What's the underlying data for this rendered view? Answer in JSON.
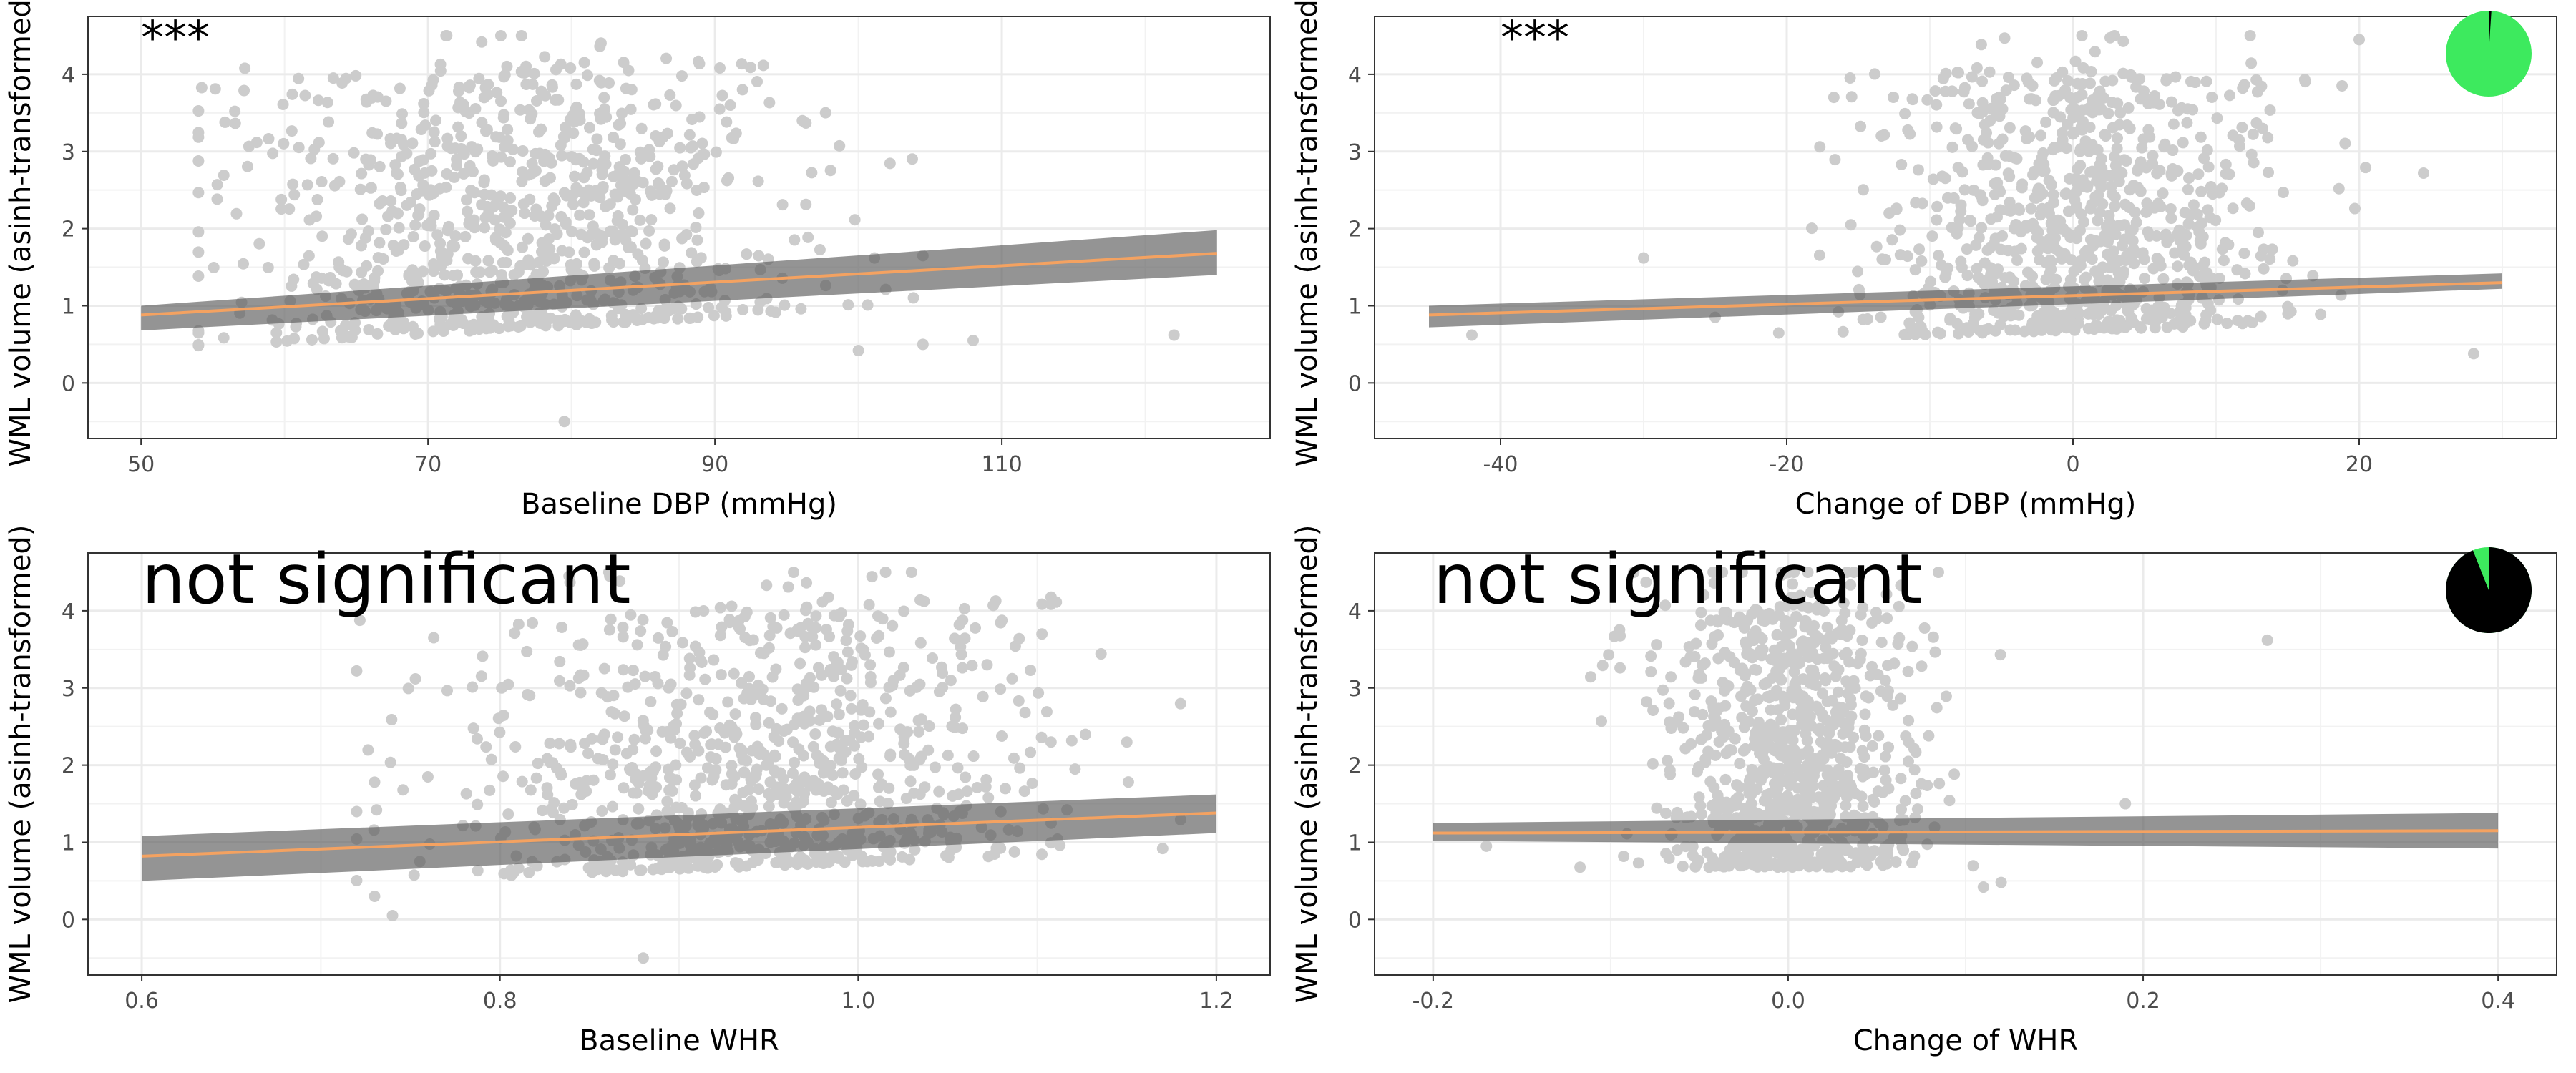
{
  "figure": {
    "ylabel": "WML volume (asinh-transformed)"
  },
  "chart_data": [
    {
      "type": "scatter",
      "xlabel": "Baseline DBP (mmHg)",
      "ylabel": "WML volume (asinh-transformed)",
      "annotation": "***",
      "xlim": [
        46.3,
        128.7
      ],
      "ylim": [
        -0.72,
        4.75
      ],
      "xticks": [
        50,
        70,
        90,
        110
      ],
      "xtick_labels": [
        "50",
        "70",
        "90",
        "110"
      ],
      "yticks": [
        0,
        1,
        2,
        3,
        4
      ],
      "ytick_labels": [
        "0",
        "1",
        "2",
        "3",
        "4"
      ],
      "fit": {
        "x": [
          50,
          125
        ],
        "y": [
          0.88,
          1.68
        ],
        "ci_low": [
          0.68,
          1.4
        ],
        "ci_high": [
          1.0,
          1.98
        ]
      },
      "scatter": {
        "x_mean": 76,
        "x_sd": 9.5,
        "x_min": 54,
        "x_max": 122,
        "extras": [
          [
            122,
            0.62
          ],
          [
            108,
            0.55
          ],
          [
            104.5,
            0.5
          ],
          [
            104.5,
            1.65
          ],
          [
            100,
            0.42
          ],
          [
            79.5,
            -0.5
          ]
        ]
      },
      "pie": null,
      "grid": true
    },
    {
      "type": "scatter",
      "xlabel": "Change of DBP (mmHg)",
      "ylabel": "WML volume (asinh-transformed)",
      "annotation": "***",
      "xlim": [
        -48.8,
        33.8
      ],
      "ylim": [
        -0.72,
        4.75
      ],
      "xticks": [
        -40,
        -20,
        0,
        20
      ],
      "xtick_labels": [
        "-40",
        "-20",
        "0",
        "20"
      ],
      "yticks": [
        0,
        1,
        2,
        3,
        4
      ],
      "ytick_labels": [
        "0",
        "1",
        "2",
        "3",
        "4"
      ],
      "fit": {
        "x": [
          -45,
          30
        ],
        "y": [
          0.88,
          1.3
        ],
        "ci_low": [
          0.72,
          1.22
        ],
        "ci_high": [
          1.0,
          1.42
        ]
      },
      "scatter": {
        "x_mean": 0,
        "x_sd": 7,
        "x_min": -22,
        "x_max": 28,
        "extras": [
          [
            -42,
            0.62
          ],
          [
            -30,
            1.62
          ],
          [
            -25,
            0.85
          ],
          [
            28,
            0.38
          ],
          [
            24.5,
            2.72
          ],
          [
            20,
            4.45
          ]
        ]
      },
      "pie": {
        "fraction_black": 0.01,
        "colors": [
          "#000000",
          "#3dea5e"
        ]
      },
      "grid": true
    },
    {
      "type": "scatter",
      "xlabel": "Baseline WHR",
      "ylabel": "WML volume (asinh-transformed)",
      "annotation": "not significant",
      "xlim": [
        0.57,
        1.23
      ],
      "ylim": [
        -0.72,
        4.75
      ],
      "xticks": [
        0.6,
        0.8,
        1.0,
        1.2
      ],
      "xtick_labels": [
        "0.6",
        "0.8",
        "1.0",
        "1.2"
      ],
      "yticks": [
        0,
        1,
        2,
        3,
        4
      ],
      "ytick_labels": [
        "0",
        "1",
        "2",
        "3",
        "4"
      ],
      "fit": {
        "x": [
          0.6,
          1.2
        ],
        "y": [
          0.82,
          1.38
        ],
        "ci_low": [
          0.5,
          1.12
        ],
        "ci_high": [
          1.08,
          1.62
        ]
      },
      "scatter": {
        "x_mean": 0.95,
        "x_sd": 0.08,
        "x_min": 0.72,
        "x_max": 1.18,
        "extras": [
          [
            0.73,
            1.78
          ],
          [
            0.73,
            0.3
          ],
          [
            0.74,
            0.05
          ],
          [
            1.17,
            0.92
          ],
          [
            0.88,
            -0.5
          ],
          [
            1.15,
            2.3
          ]
        ]
      },
      "pie": null,
      "grid": true
    },
    {
      "type": "scatter",
      "xlabel": "Change of WHR",
      "ylabel": "WML volume (asinh-transformed)",
      "annotation": "not significant",
      "xlim": [
        -0.233,
        0.433
      ],
      "ylim": [
        -0.72,
        4.75
      ],
      "xticks": [
        -0.2,
        0.0,
        0.2,
        0.4
      ],
      "xtick_labels": [
        "-0.2",
        "0.0",
        "0.2",
        "0.4"
      ],
      "yticks": [
        0,
        1,
        2,
        3,
        4
      ],
      "ytick_labels": [
        "0",
        "1",
        "2",
        "3",
        "4"
      ],
      "fit": {
        "x": [
          -0.2,
          0.4
        ],
        "y": [
          1.12,
          1.15
        ],
        "ci_low": [
          1.02,
          0.92
        ],
        "ci_high": [
          1.25,
          1.38
        ]
      },
      "scatter": {
        "x_mean": 0,
        "x_sd": 0.035,
        "x_min": -0.14,
        "x_max": 0.13,
        "extras": [
          [
            0.27,
            3.62
          ],
          [
            0.19,
            1.5
          ],
          [
            -0.17,
            0.95
          ],
          [
            0.12,
            0.48
          ],
          [
            0.11,
            0.42
          ]
        ]
      },
      "pie": {
        "fraction_black": 0.94,
        "colors": [
          "#000000",
          "#3dea5e"
        ]
      },
      "grid": true
    }
  ]
}
